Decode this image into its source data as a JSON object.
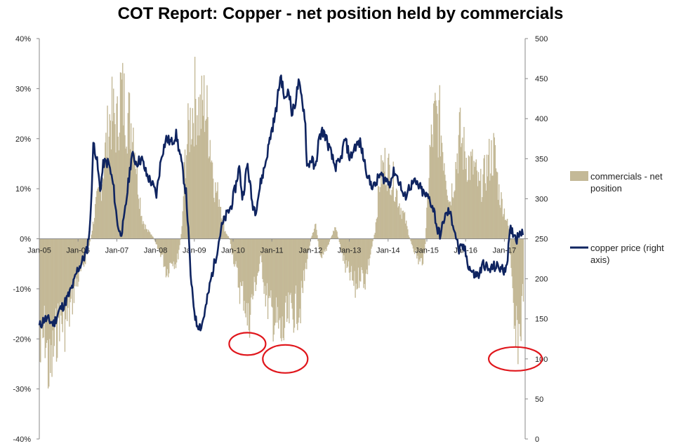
{
  "chart_data": {
    "type": "bar+line",
    "title": "COT Report: Copper - net position held by commercials",
    "xlabel": "",
    "ylabel_left": "",
    "ylabel_right": "",
    "y_left_range": [
      -40,
      40
    ],
    "y_left_ticks": [
      "40%",
      "30%",
      "20%",
      "10%",
      "0%",
      "-10%",
      "-20%",
      "-30%",
      "-40%"
    ],
    "y_right_range": [
      0,
      500
    ],
    "y_right_ticks": [
      "500",
      "450",
      "400",
      "350",
      "300",
      "250",
      "200",
      "150",
      "100",
      "50",
      "0"
    ],
    "x_range": [
      "2005-01-01",
      "2017-04-01"
    ],
    "x_ticks": [
      "Jan-05",
      "Jan-06",
      "Jan-07",
      "Jan-08",
      "Jan-09",
      "Jan-10",
      "Jan-11",
      "Jan-12",
      "Jan-13",
      "Jan-14",
      "Jan-15",
      "Jan-16",
      "Jan-17"
    ],
    "grid": false,
    "legend_position": "right",
    "colors": {
      "commercials": "#c4b997",
      "copper": "#0f2460",
      "highlight": "#e0161c"
    },
    "series": [
      {
        "name": "commercials - net position",
        "kind": "area",
        "axis": "left",
        "unit": "%",
        "points": [
          [
            "2005-01-01",
            -30
          ],
          [
            "2005-02-15",
            -22
          ],
          [
            "2005-04-01",
            -34
          ],
          [
            "2005-05-15",
            -26
          ],
          [
            "2005-07-01",
            -19
          ],
          [
            "2005-08-15",
            -21
          ],
          [
            "2005-10-01",
            -18
          ],
          [
            "2005-11-15",
            -12
          ],
          [
            "2005-12-15",
            -10
          ],
          [
            "2006-02-01",
            -7
          ],
          [
            "2006-03-15",
            -3
          ],
          [
            "2006-04-15",
            0
          ],
          [
            "2006-06-01",
            8
          ],
          [
            "2006-07-15",
            12
          ],
          [
            "2006-09-01",
            22
          ],
          [
            "2006-10-15",
            30
          ],
          [
            "2006-11-15",
            29
          ],
          [
            "2006-12-15",
            27
          ],
          [
            "2007-01-15",
            36
          ],
          [
            "2007-02-15",
            33
          ],
          [
            "2007-04-01",
            29
          ],
          [
            "2007-05-15",
            27
          ],
          [
            "2007-06-15",
            16
          ],
          [
            "2007-08-01",
            5
          ],
          [
            "2007-09-15",
            2
          ],
          [
            "2007-11-01",
            1
          ],
          [
            "2007-12-15",
            -2
          ],
          [
            "2008-02-01",
            -4
          ],
          [
            "2008-03-15",
            -8
          ],
          [
            "2008-05-01",
            -5
          ],
          [
            "2008-06-15",
            -6
          ],
          [
            "2008-08-01",
            2
          ],
          [
            "2008-09-01",
            20
          ],
          [
            "2008-10-15",
            28
          ],
          [
            "2008-12-01",
            34
          ],
          [
            "2009-01-15",
            30
          ],
          [
            "2009-03-01",
            33
          ],
          [
            "2009-04-15",
            25
          ],
          [
            "2009-06-01",
            12
          ],
          [
            "2009-07-15",
            10
          ],
          [
            "2009-09-01",
            2
          ],
          [
            "2009-10-15",
            0
          ],
          [
            "2009-12-01",
            -6
          ],
          [
            "2010-01-15",
            -12
          ],
          [
            "2010-03-01",
            -14
          ],
          [
            "2010-04-01",
            -21
          ],
          [
            "2010-05-01",
            -16
          ],
          [
            "2010-06-15",
            -10
          ],
          [
            "2010-08-01",
            -5
          ],
          [
            "2010-09-15",
            -14
          ],
          [
            "2010-11-01",
            -18
          ],
          [
            "2010-12-15",
            -20
          ],
          [
            "2011-02-01",
            -24
          ],
          [
            "2011-03-15",
            -21
          ],
          [
            "2011-05-01",
            -18
          ],
          [
            "2011-06-15",
            -17
          ],
          [
            "2011-08-01",
            -16
          ],
          [
            "2011-09-15",
            -7
          ],
          [
            "2011-11-01",
            0
          ],
          [
            "2011-12-15",
            4
          ],
          [
            "2012-02-01",
            -6
          ],
          [
            "2012-03-15",
            -3
          ],
          [
            "2012-05-01",
            0
          ],
          [
            "2012-06-15",
            3
          ],
          [
            "2012-08-01",
            -2
          ],
          [
            "2012-09-15",
            -7
          ],
          [
            "2012-11-01",
            -9
          ],
          [
            "2012-12-15",
            -12
          ],
          [
            "2013-02-01",
            -8
          ],
          [
            "2013-03-15",
            -10
          ],
          [
            "2013-05-01",
            -4
          ],
          [
            "2013-06-15",
            2
          ],
          [
            "2013-08-01",
            15
          ],
          [
            "2013-09-15",
            18
          ],
          [
            "2013-11-01",
            16
          ],
          [
            "2013-12-15",
            13
          ],
          [
            "2014-02-01",
            8
          ],
          [
            "2014-03-15",
            5
          ],
          [
            "2014-05-01",
            0
          ],
          [
            "2014-06-15",
            -3
          ],
          [
            "2014-08-01",
            -6
          ],
          [
            "2014-09-15",
            -4
          ],
          [
            "2014-11-01",
            20
          ],
          [
            "2014-12-15",
            29
          ],
          [
            "2015-02-01",
            28
          ],
          [
            "2015-03-15",
            20
          ],
          [
            "2015-05-01",
            9
          ],
          [
            "2015-06-15",
            15
          ],
          [
            "2015-08-01",
            25
          ],
          [
            "2015-09-15",
            21
          ],
          [
            "2015-11-01",
            18
          ],
          [
            "2015-12-15",
            17
          ],
          [
            "2016-02-01",
            12
          ],
          [
            "2016-03-15",
            15
          ],
          [
            "2016-05-01",
            19
          ],
          [
            "2016-06-15",
            21
          ],
          [
            "2016-08-01",
            11
          ],
          [
            "2016-09-15",
            7
          ],
          [
            "2016-11-01",
            2
          ],
          [
            "2016-12-01",
            -15
          ],
          [
            "2016-12-20",
            -25
          ],
          [
            "2017-01-15",
            -24
          ],
          [
            "2017-02-15",
            -21
          ],
          [
            "2017-03-15",
            -10
          ]
        ]
      },
      {
        "name": "copper price (right axis)",
        "kind": "line",
        "axis": "right",
        "points": [
          [
            "2005-01-01",
            140
          ],
          [
            "2005-02-15",
            150
          ],
          [
            "2005-04-01",
            148
          ],
          [
            "2005-05-15",
            144
          ],
          [
            "2005-07-01",
            160
          ],
          [
            "2005-08-15",
            168
          ],
          [
            "2005-10-01",
            180
          ],
          [
            "2005-11-15",
            195
          ],
          [
            "2005-12-15",
            210
          ],
          [
            "2006-02-01",
            222
          ],
          [
            "2006-03-15",
            235
          ],
          [
            "2006-04-15",
            270
          ],
          [
            "2006-05-15",
            372
          ],
          [
            "2006-06-15",
            348
          ],
          [
            "2006-07-15",
            310
          ],
          [
            "2006-08-15",
            345
          ],
          [
            "2006-10-01",
            345
          ],
          [
            "2006-11-15",
            315
          ],
          [
            "2006-12-15",
            275
          ],
          [
            "2007-01-15",
            255
          ],
          [
            "2007-02-15",
            268
          ],
          [
            "2007-03-15",
            300
          ],
          [
            "2007-05-01",
            355
          ],
          [
            "2007-06-15",
            345
          ],
          [
            "2007-08-01",
            350
          ],
          [
            "2007-09-15",
            330
          ],
          [
            "2007-11-01",
            320
          ],
          [
            "2007-12-15",
            305
          ],
          [
            "2008-02-01",
            355
          ],
          [
            "2008-03-15",
            375
          ],
          [
            "2008-05-01",
            370
          ],
          [
            "2008-06-15",
            380
          ],
          [
            "2008-08-01",
            345
          ],
          [
            "2008-09-15",
            305
          ],
          [
            "2008-11-01",
            190
          ],
          [
            "2008-12-15",
            145
          ],
          [
            "2009-02-01",
            140
          ],
          [
            "2009-03-15",
            165
          ],
          [
            "2009-05-01",
            200
          ],
          [
            "2009-06-15",
            228
          ],
          [
            "2009-08-01",
            262
          ],
          [
            "2009-09-15",
            278
          ],
          [
            "2009-11-01",
            290
          ],
          [
            "2009-12-15",
            316
          ],
          [
            "2010-01-15",
            340
          ],
          [
            "2010-02-15",
            300
          ],
          [
            "2010-04-01",
            344
          ],
          [
            "2010-05-15",
            295
          ],
          [
            "2010-06-15",
            285
          ],
          [
            "2010-08-01",
            320
          ],
          [
            "2010-09-15",
            345
          ],
          [
            "2010-11-01",
            380
          ],
          [
            "2010-12-15",
            405
          ],
          [
            "2011-02-01",
            455
          ],
          [
            "2011-03-15",
            420
          ],
          [
            "2011-04-15",
            440
          ],
          [
            "2011-05-15",
            405
          ],
          [
            "2011-06-15",
            420
          ],
          [
            "2011-07-15",
            445
          ],
          [
            "2011-08-15",
            425
          ],
          [
            "2011-09-15",
            400
          ],
          [
            "2011-10-01",
            340
          ],
          [
            "2011-11-15",
            350
          ],
          [
            "2011-12-15",
            335
          ],
          [
            "2012-01-15",
            370
          ],
          [
            "2012-02-15",
            385
          ],
          [
            "2012-03-15",
            380
          ],
          [
            "2012-05-01",
            360
          ],
          [
            "2012-06-15",
            340
          ],
          [
            "2012-08-01",
            345
          ],
          [
            "2012-09-15",
            375
          ],
          [
            "2012-11-01",
            350
          ],
          [
            "2012-12-15",
            365
          ],
          [
            "2013-02-01",
            370
          ],
          [
            "2013-03-15",
            345
          ],
          [
            "2013-05-01",
            320
          ],
          [
            "2013-06-15",
            315
          ],
          [
            "2013-08-01",
            330
          ],
          [
            "2013-09-15",
            325
          ],
          [
            "2013-11-01",
            320
          ],
          [
            "2013-12-15",
            335
          ],
          [
            "2014-02-01",
            320
          ],
          [
            "2014-03-15",
            300
          ],
          [
            "2014-05-01",
            315
          ],
          [
            "2014-06-15",
            320
          ],
          [
            "2014-08-01",
            315
          ],
          [
            "2014-09-15",
            305
          ],
          [
            "2014-11-01",
            300
          ],
          [
            "2014-12-15",
            285
          ],
          [
            "2015-01-15",
            260
          ],
          [
            "2015-02-15",
            255
          ],
          [
            "2015-03-15",
            275
          ],
          [
            "2015-05-01",
            285
          ],
          [
            "2015-06-15",
            265
          ],
          [
            "2015-08-01",
            235
          ],
          [
            "2015-09-15",
            240
          ],
          [
            "2015-11-01",
            215
          ],
          [
            "2015-12-15",
            205
          ],
          [
            "2016-02-01",
            205
          ],
          [
            "2016-03-15",
            220
          ],
          [
            "2016-05-01",
            210
          ],
          [
            "2016-06-15",
            215
          ],
          [
            "2016-08-01",
            215
          ],
          [
            "2016-09-15",
            210
          ],
          [
            "2016-10-15",
            220
          ],
          [
            "2016-11-15",
            260
          ],
          [
            "2016-12-15",
            258
          ],
          [
            "2017-01-15",
            250
          ],
          [
            "2017-02-15",
            262
          ],
          [
            "2017-03-15",
            258
          ]
        ]
      }
    ],
    "annotations": [
      {
        "type": "circle",
        "at": [
          "2010-04-01",
          -21
        ]
      },
      {
        "type": "circle",
        "at": [
          "2011-03-15",
          -24
        ]
      },
      {
        "type": "circle",
        "at": [
          "2017-01-01",
          -24
        ]
      }
    ]
  }
}
